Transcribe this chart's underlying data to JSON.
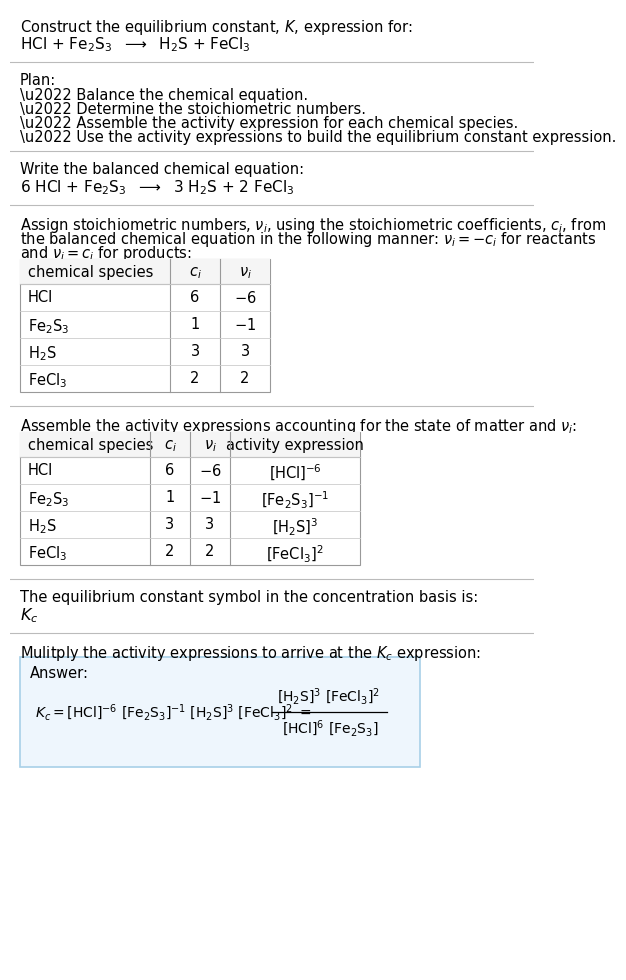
{
  "title_line1": "Construct the equilibrium constant, $K$, expression for:",
  "title_line2": "HCl + Fe$_2$S$_3$  $\\longrightarrow$  H$_2$S + FeCl$_3$",
  "plan_header": "Plan:",
  "plan_items": [
    "\\u2022 Balance the chemical equation.",
    "\\u2022 Determine the stoichiometric numbers.",
    "\\u2022 Assemble the activity expression for each chemical species.",
    "\\u2022 Use the activity expressions to build the equilibrium constant expression."
  ],
  "balanced_header": "Write the balanced chemical equation:",
  "balanced_eq": "6 HCl + Fe$_2$S$_3$  $\\longrightarrow$  3 H$_2$S + 2 FeCl$_3$",
  "stoich_line1": "Assign stoichiometric numbers, $\\nu_i$, using the stoichiometric coefficients, $c_i$, from",
  "stoich_line2": "the balanced chemical equation in the following manner: $\\nu_i = -c_i$ for reactants",
  "stoich_line3": "and $\\nu_i = c_i$ for products:",
  "table1_cols": [
    "chemical species",
    "$c_i$",
    "$\\nu_i$"
  ],
  "table1_rows": [
    [
      "HCl",
      "6",
      "$-$6"
    ],
    [
      "Fe$_2$S$_3$",
      "1",
      "$-$1"
    ],
    [
      "H$_2$S",
      "3",
      "3"
    ],
    [
      "FeCl$_3$",
      "2",
      "2"
    ]
  ],
  "activity_header": "Assemble the activity expressions accounting for the state of matter and $\\nu_i$:",
  "table2_cols": [
    "chemical species",
    "$c_i$",
    "$\\nu_i$",
    "activity expression"
  ],
  "table2_rows": [
    [
      "HCl",
      "6",
      "$-$6",
      "[HCl]$^{-6}$"
    ],
    [
      "Fe$_2$S$_3$",
      "1",
      "$-$1",
      "[Fe$_2$S$_3$]$^{-1}$"
    ],
    [
      "H$_2$S",
      "3",
      "3",
      "[H$_2$S]$^3$"
    ],
    [
      "FeCl$_3$",
      "2",
      "2",
      "[FeCl$_3$]$^2$"
    ]
  ],
  "kc_header": "The equilibrium constant symbol in the concentration basis is:",
  "kc_symbol": "$K_c$",
  "multiply_header": "Mulitply the activity expressions to arrive at the $K_c$ expression:",
  "answer_label": "Answer:",
  "bg_color": "#ffffff",
  "answer_bg": "#eef6fd",
  "answer_border": "#a8d0e8",
  "text_color": "#000000",
  "sep_color": "#bbbbbb",
  "font_size": 10.5
}
